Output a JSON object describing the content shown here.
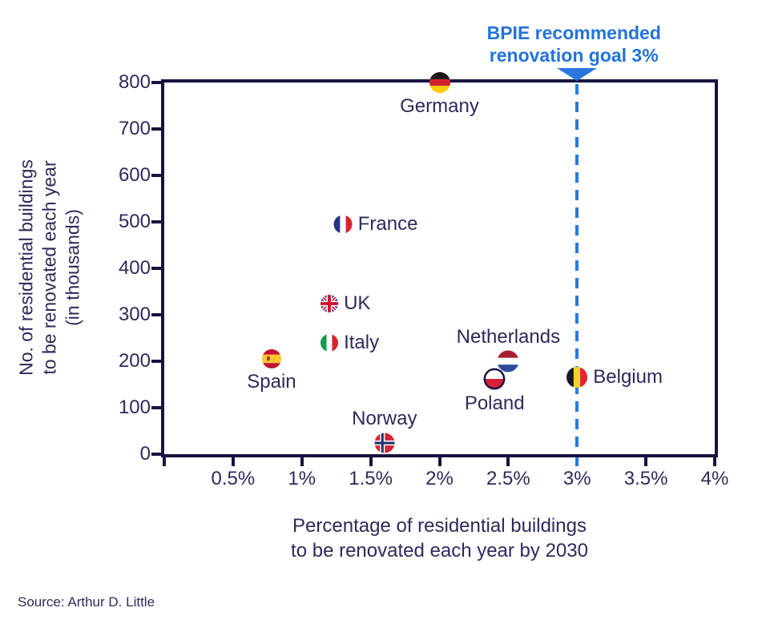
{
  "annotation": {
    "lines": [
      "BPIE recommended",
      "renovation goal 3%"
    ]
  },
  "source": "Source: Arthur D. Little",
  "colors": {
    "text_navy": "#2B2B5C",
    "axis_navy": "#16143F",
    "annotation_blue": "#2273DC",
    "dashed_line_blue": "#2B77DF"
  },
  "chart_data": {
    "type": "scatter",
    "title": "",
    "xlabel": "Percentage of residential buildings to be renovated each year by 2030",
    "ylabel": "No. of residential buildings to be renovated each year (in thousands)",
    "xlabel_lines": [
      "Percentage of residential buildings",
      "to be renovated each year by 2030"
    ],
    "ylabel_lines": [
      "No. of residential buildings",
      "to be renovated each year",
      "(in thousands)"
    ],
    "xlim": [
      0,
      4
    ],
    "ylim": [
      0,
      800
    ],
    "grid": false,
    "legend": false,
    "x_tick_values": [
      0,
      0.5,
      1,
      1.5,
      2,
      2.5,
      3,
      3.5,
      4
    ],
    "x_tick_labels": [
      "",
      "0.5%",
      "1%",
      "1.5%",
      "2%",
      "2.5%",
      "3%",
      "3.5%",
      "4%"
    ],
    "y_tick_values": [
      0,
      100,
      200,
      300,
      400,
      500,
      600,
      700,
      800
    ],
    "y_tick_labels": [
      "0",
      "100",
      "200",
      "300",
      "400",
      "500",
      "600",
      "700",
      "800"
    ],
    "reference_line": {
      "x": 3.0,
      "style": "dashed",
      "color": "#2B77DF",
      "label": "BPIE recommended renovation goal 3%"
    },
    "points": [
      {
        "country": "Germany",
        "flag": "germany-flag-icon",
        "x": 2.0,
        "y": 800,
        "label_position": "below",
        "marker_size": 26
      },
      {
        "country": "France",
        "flag": "france-flag-icon",
        "x": 1.3,
        "y": 495,
        "label_position": "right",
        "marker_size": 23
      },
      {
        "country": "UK",
        "flag": "uk-flag-icon",
        "x": 1.2,
        "y": 325,
        "label_position": "right",
        "marker_size": 22
      },
      {
        "country": "Italy",
        "flag": "italy-flag-icon",
        "x": 1.2,
        "y": 240,
        "label_position": "right",
        "marker_size": 22
      },
      {
        "country": "Spain",
        "flag": "spain-flag-icon",
        "x": 0.78,
        "y": 205,
        "label_position": "below",
        "marker_size": 24
      },
      {
        "country": "Netherlands",
        "flag": "netherlands-flag-icon",
        "x": 2.5,
        "y": 200,
        "label_position": "above",
        "marker_size": 27
      },
      {
        "country": "Poland",
        "flag": "poland-flag-icon",
        "x": 2.4,
        "y": 162,
        "label_position": "below",
        "marker_size": 27
      },
      {
        "country": "Belgium",
        "flag": "belgium-flag-icon",
        "x": 3.0,
        "y": 165,
        "label_position": "right",
        "marker_size": 26
      },
      {
        "country": "Norway",
        "flag": "norway-flag-icon",
        "x": 1.6,
        "y": 25,
        "label_position": "above",
        "marker_size": 25
      }
    ]
  }
}
